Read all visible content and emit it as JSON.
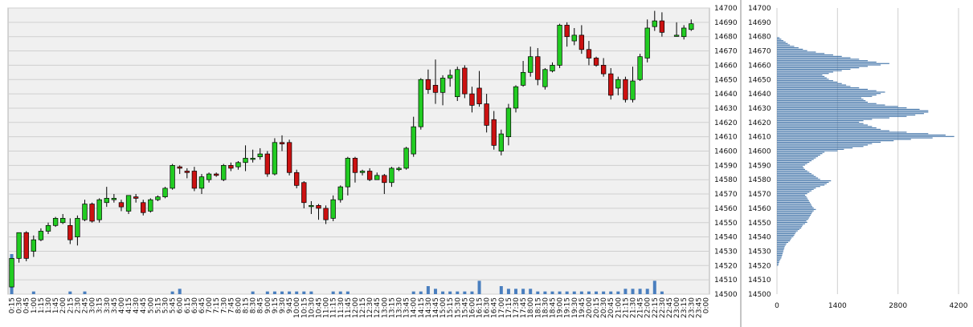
{
  "colors": {
    "plot_bg": "#f0f0f0",
    "grid": "#cfcfcf",
    "up": "#22cc22",
    "down": "#cc1111",
    "wick": "#000000",
    "volume": "#4a7fbf",
    "profile": "#3a6ea5"
  },
  "chart_data": [
    {
      "type": "candlestick",
      "title": "",
      "xlabel": "",
      "ylabel": "",
      "grid": true,
      "x_tick_labels": [
        "0:15",
        "0:30",
        "0:45",
        "1:00",
        "1:15",
        "1:30",
        "1:45",
        "2:00",
        "2:15",
        "2:30",
        "2:45",
        "3:00",
        "3:15",
        "3:30",
        "3:45",
        "4:00",
        "4:15",
        "4:30",
        "4:45",
        "5:00",
        "5:15",
        "5:30",
        "5:45",
        "6:00",
        "6:15",
        "6:30",
        "6:45",
        "7:00",
        "7:15",
        "7:30",
        "7:45",
        "8:00",
        "8:15",
        "8:30",
        "8:45",
        "9:00",
        "9:15",
        "9:30",
        "9:45",
        "10:00",
        "10:15",
        "10:30",
        "10:45",
        "11:00",
        "11:15",
        "11:30",
        "11:45",
        "12:00",
        "12:15",
        "12:30",
        "12:45",
        "13:00",
        "13:15",
        "13:30",
        "13:45",
        "14:00",
        "14:15",
        "14:30",
        "14:45",
        "15:00",
        "15:15",
        "15:30",
        "15:45",
        "16:00",
        "16:15",
        "16:30",
        "16:45",
        "17:00",
        "17:15",
        "17:30",
        "17:45",
        "18:00",
        "18:15",
        "18:30",
        "18:45",
        "19:00",
        "19:15",
        "19:30",
        "19:45",
        "20:00",
        "20:15",
        "20:30",
        "20:45",
        "21:00",
        "21:15",
        "21:30",
        "21:45",
        "22:00",
        "22:15",
        "22:30",
        "22:45",
        "23:00",
        "23:15",
        "23:30",
        "23:45",
        "0:00"
      ],
      "y_ticks": [
        14500,
        14510,
        14520,
        14530,
        14540,
        14550,
        14560,
        14570,
        14580,
        14590,
        14600,
        14610,
        14620,
        14630,
        14640,
        14650,
        14660,
        14670,
        14680,
        14690,
        14700
      ],
      "ylim": [
        14500,
        14700
      ],
      "candles": [
        [
          14505,
          14525,
          14505,
          14525
        ],
        [
          14525,
          14543,
          14522,
          14542
        ],
        [
          14543,
          14525,
          14523,
          14544
        ],
        [
          14530,
          14538,
          14526,
          14541
        ],
        [
          14538,
          14544,
          14537,
          14546
        ],
        [
          14544,
          14548,
          14542,
          14550
        ],
        [
          14548,
          14553,
          14547,
          14554
        ],
        [
          14550,
          14553,
          14549,
          14556
        ],
        [
          14548,
          14538,
          14535,
          14553
        ],
        [
          14540,
          14553,
          14534,
          14555
        ],
        [
          14552,
          14563,
          14551,
          14566
        ],
        [
          14563,
          14551,
          14550,
          14564
        ],
        [
          14552,
          14566,
          14550,
          14567
        ],
        [
          14564,
          14567,
          14561,
          14575
        ],
        [
          14566,
          14567,
          14564,
          14570
        ],
        [
          14564,
          14561,
          14558,
          14566
        ],
        [
          14558,
          14569,
          14556,
          14569
        ],
        [
          14568,
          14567,
          14564,
          14570
        ],
        [
          14564,
          14557,
          14555,
          14566
        ],
        [
          14558,
          14566,
          14557,
          14567
        ],
        [
          14566,
          14568,
          14565,
          14569
        ],
        [
          14568,
          14574,
          14567,
          14575
        ],
        [
          14574,
          14590,
          14573,
          14591
        ],
        [
          14589,
          14588,
          14584,
          14590
        ],
        [
          14586,
          14585,
          14581,
          14588
        ],
        [
          14586,
          14574,
          14572,
          14589
        ],
        [
          14574,
          14582,
          14570,
          14584
        ],
        [
          14580,
          14584,
          14578,
          14585
        ],
        [
          14584,
          14583,
          14582,
          14585
        ],
        [
          14580,
          14590,
          14579,
          14591
        ],
        [
          14590,
          14588,
          14586,
          14592
        ],
        [
          14589,
          14592,
          14587,
          14593
        ],
        [
          14592,
          14595,
          14586,
          14604
        ],
        [
          14595,
          14595,
          14592,
          14601
        ],
        [
          14596,
          14598,
          14594,
          14602
        ],
        [
          14598,
          14584,
          14582,
          14600
        ],
        [
          14584,
          14606,
          14583,
          14609
        ],
        [
          14606,
          14605,
          14600,
          14611
        ],
        [
          14606,
          14585,
          14583,
          14608
        ],
        [
          14585,
          14576,
          14574,
          14587
        ],
        [
          14578,
          14564,
          14560,
          14579
        ],
        [
          14562,
          14562,
          14556,
          14565
        ],
        [
          14562,
          14560,
          14552,
          14563
        ],
        [
          14560,
          14552,
          14549,
          14562
        ],
        [
          14553,
          14566,
          14551,
          14569
        ],
        [
          14566,
          14575,
          14564,
          14576
        ],
        [
          14575,
          14595,
          14569,
          14596
        ],
        [
          14595,
          14585,
          14578,
          14596
        ],
        [
          14585,
          14586,
          14583,
          14587
        ],
        [
          14586,
          14580,
          14579,
          14588
        ],
        [
          14580,
          14583,
          14580,
          14585
        ],
        [
          14583,
          14578,
          14570,
          14584
        ],
        [
          14578,
          14588,
          14575,
          14589
        ],
        [
          14587,
          14588,
          14586,
          14589
        ],
        [
          14588,
          14602,
          14587,
          14603
        ],
        [
          14598,
          14617,
          14596,
          14624
        ],
        [
          14617,
          14650,
          14615,
          14651
        ],
        [
          14650,
          14643,
          14640,
          14657
        ],
        [
          14646,
          14641,
          14633,
          14664
        ],
        [
          14641,
          14651,
          14632,
          14653
        ],
        [
          14651,
          14653,
          14645,
          14657
        ],
        [
          14638,
          14657,
          14635,
          14659
        ],
        [
          14658,
          14640,
          14637,
          14660
        ],
        [
          14640,
          14632,
          14627,
          14645
        ],
        [
          14644,
          14633,
          14631,
          14656
        ],
        [
          14633,
          14618,
          14613,
          14640
        ],
        [
          14622,
          14604,
          14601,
          14628
        ],
        [
          14600,
          14612,
          14597,
          14615
        ],
        [
          14610,
          14630,
          14604,
          14633
        ],
        [
          14630,
          14645,
          14627,
          14646
        ],
        [
          14646,
          14655,
          14645,
          14663
        ],
        [
          14655,
          14666,
          14652,
          14673
        ],
        [
          14666,
          14650,
          14646,
          14672
        ],
        [
          14645,
          14657,
          14643,
          14658
        ],
        [
          14656,
          14660,
          14655,
          14662
        ],
        [
          14660,
          14688,
          14658,
          14689
        ],
        [
          14688,
          14680,
          14673,
          14690
        ],
        [
          14677,
          14681,
          14674,
          14686
        ],
        [
          14681,
          14671,
          14668,
          14688
        ],
        [
          14671,
          14665,
          14660,
          14677
        ],
        [
          14665,
          14660,
          14659,
          14666
        ],
        [
          14660,
          14654,
          14652,
          14665
        ],
        [
          14654,
          14639,
          14636,
          14658
        ],
        [
          14644,
          14650,
          14639,
          14652
        ],
        [
          14650,
          14636,
          14634,
          14652
        ],
        [
          14636,
          14649,
          14634,
          14659
        ],
        [
          14650,
          14666,
          14649,
          14668
        ],
        [
          14665,
          14686,
          14662,
          14692
        ],
        [
          14687,
          14691,
          14684,
          14698
        ],
        [
          14691,
          14683,
          14680,
          14697
        ],
        null,
        [
          14681,
          14681,
          14680,
          14690
        ],
        [
          14680,
          14686,
          14678,
          14688
        ],
        [
          14685,
          14689,
          14684,
          14692
        ],
        null,
        null
      ],
      "volume": [
        150,
        0,
        0,
        10,
        0,
        0,
        0,
        0,
        10,
        0,
        10,
        0,
        0,
        0,
        0,
        0,
        0,
        0,
        0,
        0,
        0,
        0,
        10,
        20,
        0,
        0,
        0,
        0,
        0,
        0,
        0,
        0,
        0,
        10,
        0,
        10,
        10,
        10,
        10,
        10,
        10,
        10,
        0,
        0,
        10,
        10,
        10,
        0,
        0,
        0,
        0,
        0,
        0,
        0,
        0,
        10,
        10,
        30,
        20,
        10,
        10,
        10,
        10,
        10,
        50,
        0,
        0,
        30,
        20,
        20,
        20,
        20,
        10,
        10,
        10,
        10,
        10,
        10,
        10,
        10,
        10,
        10,
        10,
        10,
        20,
        20,
        20,
        20,
        50,
        10,
        0,
        0,
        0,
        0,
        0,
        0
      ],
      "volume_axis_max": 300
    },
    {
      "type": "bar",
      "orientation": "horizontal",
      "x_ticks": [
        0,
        1400,
        2800,
        4200
      ],
      "xlim": [
        0,
        4200
      ],
      "y_ticks": [
        14500,
        14510,
        14520,
        14530,
        14540,
        14550,
        14560,
        14570,
        14580,
        14590,
        14600,
        14610,
        14620,
        14630,
        14640,
        14650,
        14660,
        14670,
        14680,
        14690,
        14700
      ],
      "ylim": [
        14500,
        14700
      ],
      "price_start": 14520,
      "price_step": 1,
      "values": [
        30,
        40,
        50,
        60,
        80,
        100,
        110,
        120,
        130,
        140,
        150,
        160,
        170,
        180,
        200,
        220,
        260,
        300,
        320,
        340,
        380,
        400,
        420,
        440,
        480,
        520,
        560,
        580,
        600,
        650,
        700,
        680,
        720,
        740,
        760,
        780,
        800,
        820,
        850,
        900,
        850,
        820,
        800,
        780,
        760,
        740,
        720,
        700,
        680,
        650,
        700,
        750,
        800,
        850,
        900,
        1000,
        1100,
        1150,
        1200,
        1250,
        1000,
        950,
        900,
        850,
        800,
        750,
        700,
        650,
        620,
        600,
        650,
        700,
        750,
        800,
        850,
        900,
        950,
        1000,
        1050,
        1100,
        1400,
        1550,
        1750,
        2000,
        2100,
        2200,
        2400,
        2700,
        3100,
        3600,
        4100,
        3900,
        3500,
        3000,
        2600,
        2400,
        2300,
        2200,
        2100,
        2000,
        1900,
        2000,
        2200,
        2600,
        3000,
        3200,
        3400,
        3500,
        3500,
        3300,
        3000,
        2800,
        2500,
        2300,
        2100,
        2050,
        2000,
        1950,
        2200,
        2300,
        2400,
        2500,
        2300,
        2100,
        1900,
        1700,
        1600,
        1500,
        1400,
        1300,
        1200,
        1150,
        1100,
        1050,
        1200,
        1300,
        1500,
        1700,
        1900,
        2100,
        2400,
        2600,
        2300,
        2100,
        1900,
        1700,
        1500,
        1300,
        1100,
        900,
        700,
        600,
        500,
        400,
        300,
        250,
        200,
        150,
        100,
        60
      ]
    }
  ]
}
